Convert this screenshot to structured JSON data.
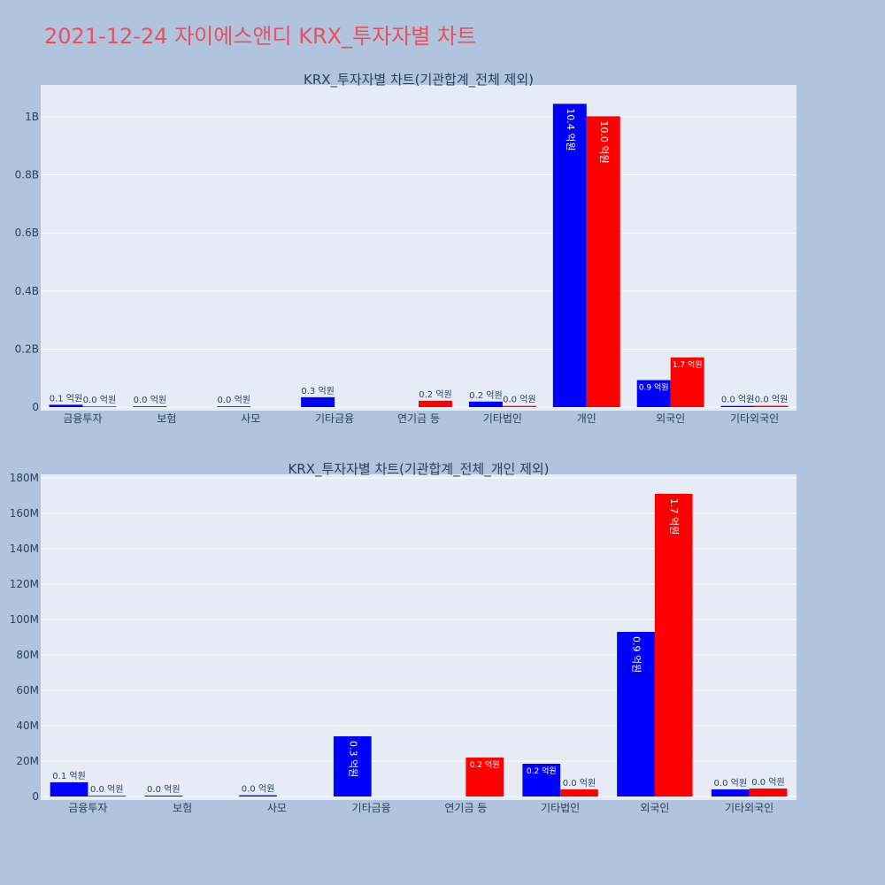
{
  "page": {
    "title": "2021-12-24 자이에스앤디 KRX_투자자별 차트",
    "background": "#b0c4de",
    "title_color": "#e8505b",
    "plot_background": "#e5ecf6",
    "grid_color": "#ffffff",
    "text_color": "#2a3f5f",
    "buy_color": "#0000ff",
    "sell_color": "#ff0000"
  },
  "chart_data": [
    {
      "type": "bar",
      "title": "KRX_투자자별 차트(기관합계_전체 제외)",
      "categories": [
        "금융투자",
        "보험",
        "사모",
        "기타금융",
        "연기금 등",
        "기타법인",
        "개인",
        "외국인",
        "기타외국인"
      ],
      "y_ticks": [
        {
          "value": 0,
          "label": "0"
        },
        {
          "value": 200000000,
          "label": "0.2B"
        },
        {
          "value": 400000000,
          "label": "0.4B"
        },
        {
          "value": 600000000,
          "label": "0.6B"
        },
        {
          "value": 800000000,
          "label": "0.8B"
        },
        {
          "value": 1000000000,
          "label": "1B"
        }
      ],
      "ylim": [
        0,
        1110000000
      ],
      "grid": true,
      "series": [
        {
          "color": "#0000ff",
          "values": [
            8000000,
            1000000,
            1000000,
            34000000,
            null,
            19000000,
            1045000000,
            93000000,
            4000000
          ],
          "labels": [
            "0.1 억원",
            "0.0 억원",
            "0.0 억원",
            "0.3 억원",
            "",
            "0.2 억원",
            "10.4 억원",
            "0.9 억원",
            "0.0 억원"
          ]
        },
        {
          "color": "#ff0000",
          "values": [
            1000000,
            null,
            null,
            null,
            22000000,
            4000000,
            1002000000,
            171000000,
            4500000
          ],
          "labels": [
            "0.0 억원",
            "",
            "",
            "",
            "0.2 억원",
            "0.0 억원",
            "10.0 억원",
            "1.7 억원",
            "0.0 억원"
          ]
        }
      ]
    },
    {
      "type": "bar",
      "title": "KRX_투자자별 차트(기관합계_전체_개인 제외)",
      "categories": [
        "금융투자",
        "보험",
        "사모",
        "기타금융",
        "연기금 등",
        "기타법인",
        "외국인",
        "기타외국인"
      ],
      "y_ticks": [
        {
          "value": 0,
          "label": "0"
        },
        {
          "value": 20000000,
          "label": "20M"
        },
        {
          "value": 40000000,
          "label": "40M"
        },
        {
          "value": 60000000,
          "label": "60M"
        },
        {
          "value": 80000000,
          "label": "80M"
        },
        {
          "value": 100000000,
          "label": "100M"
        },
        {
          "value": 120000000,
          "label": "120M"
        },
        {
          "value": 140000000,
          "label": "140M"
        },
        {
          "value": 160000000,
          "label": "160M"
        },
        {
          "value": 180000000,
          "label": "180M"
        }
      ],
      "ylim": [
        0,
        182000000
      ],
      "grid": true,
      "series": [
        {
          "color": "#0000ff",
          "values": [
            8000000,
            500000,
            700000,
            34000000,
            null,
            18500000,
            93000000,
            4000000
          ],
          "labels": [
            "0.1 억원",
            "0.0 억원",
            "0.0 억원",
            "0.3 억원",
            "",
            "0.2 억원",
            "0.9 억원",
            "0.0 억원"
          ]
        },
        {
          "color": "#ff0000",
          "values": [
            500000,
            null,
            null,
            null,
            22000000,
            4000000,
            171000000,
            4500000
          ],
          "labels": [
            "0.0 억원",
            "",
            "",
            "",
            "0.2 억원",
            "0.0 억원",
            "1.7 억원",
            "0.0 억원"
          ]
        }
      ]
    }
  ]
}
